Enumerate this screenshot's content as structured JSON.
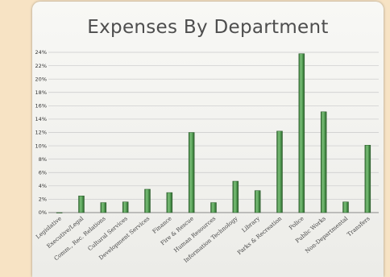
{
  "page": {
    "background_color": "#f7e3c4",
    "card_color": "#f5f5f2"
  },
  "chart_data": {
    "type": "bar",
    "title": "Expenses By Department",
    "xlabel": "",
    "ylabel": "",
    "ylim": [
      0,
      24
    ],
    "y_tick_unit": "%",
    "y_ticks": [
      "0%",
      "2%",
      "4%",
      "6%",
      "8%",
      "10%",
      "12%",
      "14%",
      "16%",
      "18%",
      "20%",
      "22%",
      "24%"
    ],
    "categories": [
      "Legislative",
      "Executive/Legal",
      "Comm., Rec. Relations",
      "Cultural Services",
      "Development Services",
      "Finance",
      "Fire & Rescue",
      "Human Resources",
      "Information Technology",
      "Library",
      "Parks & Recreation",
      "Police",
      "Public Works",
      "Non-Departmental",
      "Transfers"
    ],
    "values": [
      0,
      2.5,
      1.5,
      1.6,
      3.5,
      3.0,
      12.0,
      1.5,
      4.7,
      3.3,
      12.2,
      23.8,
      15.1,
      1.6,
      10.1
    ],
    "bar_color": "#4f9a4f",
    "grid": true,
    "legend": "none"
  }
}
